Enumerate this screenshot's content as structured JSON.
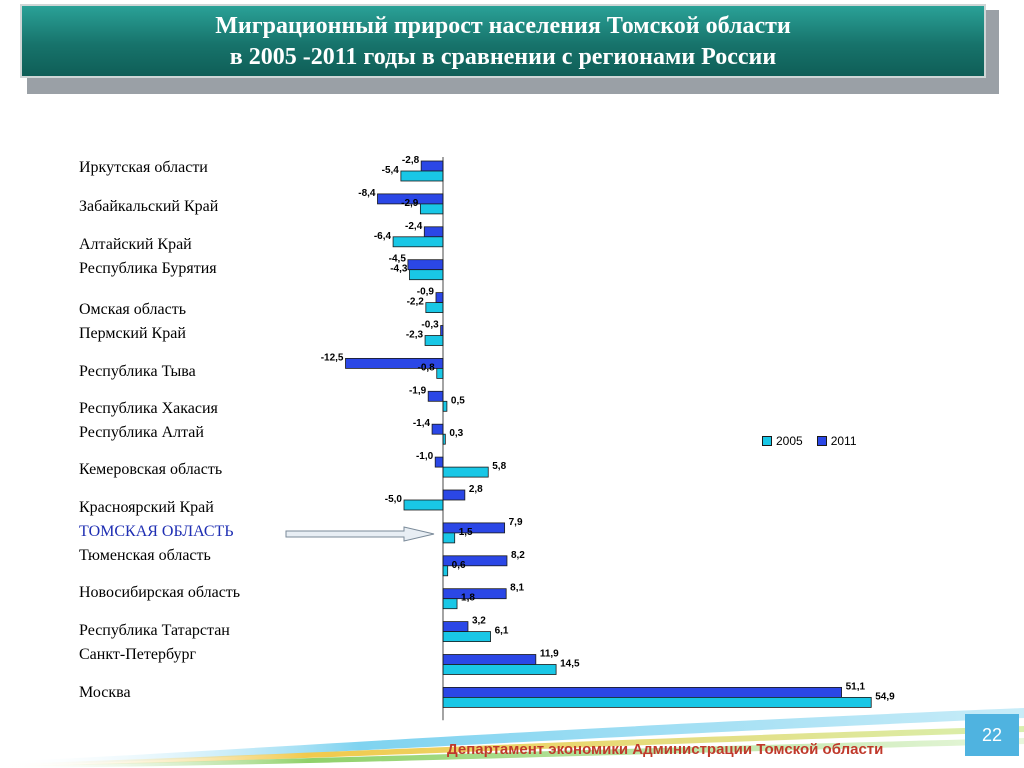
{
  "title": {
    "line1": "Миграционный прирост населения Томской области",
    "line2": "в 2005 -2011 годы в сравнении с регионами России"
  },
  "footer": {
    "department": "Департамент экономики Администрации Томской области",
    "page_number": "22"
  },
  "colors": {
    "series_2005": "#19c7e6",
    "series_2011": "#2b47e6",
    "title_bg": "#17736b",
    "highlight_label": "#1f2fb3",
    "footer_text": "#c0392b"
  },
  "chart_data": {
    "type": "bar",
    "orientation": "horizontal",
    "legend_position": "right",
    "grid": false,
    "xlim": [
      -13,
      56
    ],
    "categories": [
      "Иркутская области",
      "Забайкальский Край",
      "Алтайский Край",
      "Республика Бурятия",
      "Омская область",
      "Пермский Край",
      "Республика Тыва",
      "Республика Хакасия",
      "Республика Алтай",
      "Кемеровская область",
      "Красноярский Край",
      "ТОМСКАЯ ОБЛАСТЬ",
      "Тюменская область",
      "Новосибирская область",
      "Республика Татарстан",
      "Санкт-Петербург",
      "Москва"
    ],
    "highlight_category": "ТОМСКАЯ ОБЛАСТЬ",
    "series": [
      {
        "name": "2011",
        "values": [
          -2.8,
          -8.4,
          -2.4,
          -4.5,
          -0.9,
          -0.3,
          -12.5,
          -1.9,
          -1.4,
          -1.0,
          2.8,
          7.9,
          8.2,
          8.1,
          3.2,
          11.9,
          51.1
        ],
        "labels": [
          "-2,8",
          "-8,4",
          "-2,4",
          "-4,5",
          "-0,9",
          "-0,3",
          "-12,5",
          "-1,9",
          "-1,4",
          "-1,0",
          "2,8",
          "7,9",
          "8,2",
          "8,1",
          "3,2",
          "11,9",
          "51,1"
        ]
      },
      {
        "name": "2005",
        "values": [
          -5.4,
          -2.9,
          -6.4,
          -4.3,
          -2.2,
          -2.3,
          -0.8,
          0.5,
          0.3,
          5.8,
          -5.0,
          1.5,
          0.6,
          1.8,
          6.1,
          14.5,
          54.9
        ],
        "labels": [
          "-5,4",
          "-2,9",
          "-6,4",
          "-4,3",
          "-2,2",
          "-2,3",
          "-0,8",
          "0,5",
          "0,3",
          "5,8",
          "-5,0",
          "1,5",
          "0,6",
          "1,8",
          "6,1",
          "14,5",
          "54,9"
        ]
      }
    ],
    "legend": [
      "2005",
      "2011"
    ]
  }
}
